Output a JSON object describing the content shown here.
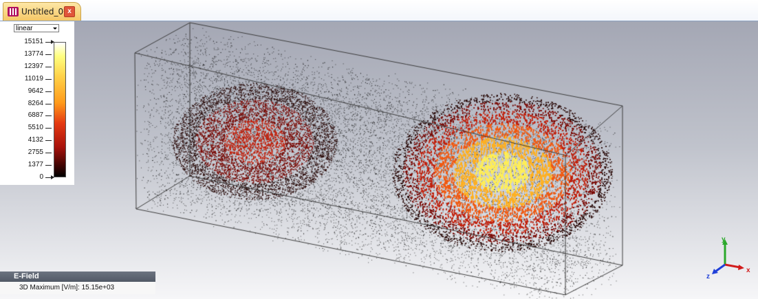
{
  "tab": {
    "title": "Untitled_0*",
    "icon": "project-icon",
    "close_icon": "close-icon",
    "close_glyph": "x"
  },
  "legend": {
    "scale": "linear",
    "ticks": [
      "15151",
      "13774",
      "12397",
      "11019",
      "9642",
      "8264",
      "6887",
      "5510",
      "4132",
      "2755",
      "1377",
      "0"
    ]
  },
  "info": {
    "title": "E-Field",
    "maximum": "3D Maximum [V/m]:  15.15e+03"
  },
  "axes": {
    "x": "x",
    "y": "y",
    "z": "z"
  },
  "colors": {
    "axis_x": "#d21c1c",
    "axis_y": "#2aa82a",
    "axis_z": "#2040d8",
    "hot": "#ffea40",
    "warm": "#e6400f",
    "cool": "#6a0000"
  }
}
